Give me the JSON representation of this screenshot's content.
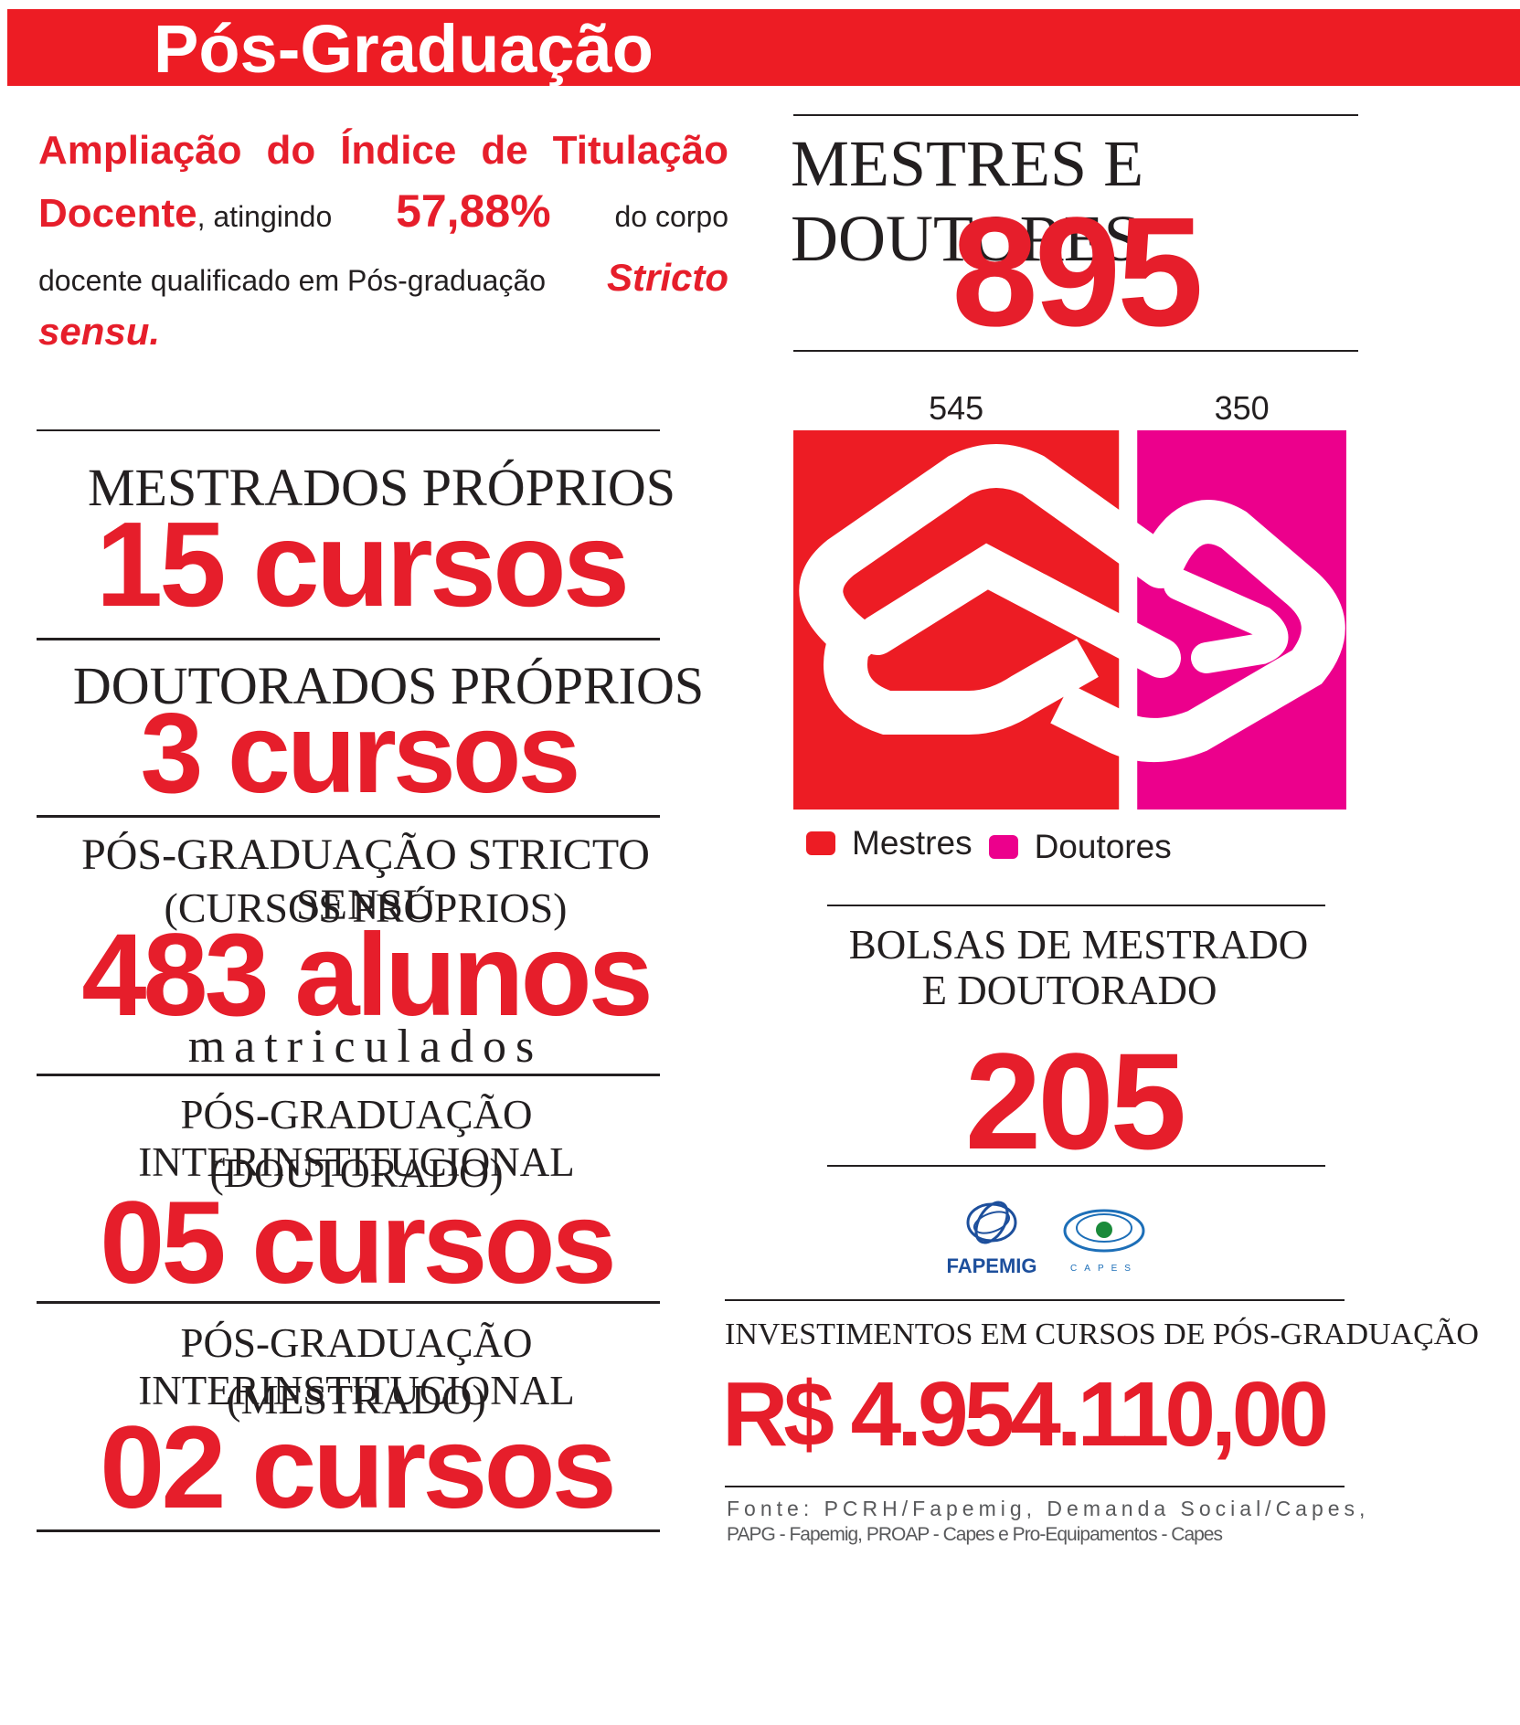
{
  "header": {
    "title": "Pós-Graduação",
    "band_color": "#ed1c24"
  },
  "intro": {
    "line1": "Ampliação do Índice de Titulação",
    "highlight_word": "Docente",
    "mid_text": ", atingindo",
    "percentage": "57,88%",
    "after_pct": "do corpo",
    "line3": "docente qualificado em Pós-graduação",
    "stricto": "Stricto",
    "sensu": "sensu."
  },
  "stats_left": [
    {
      "heading": "MESTRADOS PRÓPRIOS",
      "value": "15 cursos"
    },
    {
      "heading": "DOUTORADOS PRÓPRIOS",
      "value": "3 cursos"
    },
    {
      "heading": "PÓS-GRADUAÇÃO STRICTO SENSU",
      "heading2": "(CURSOS PRÓPRIOS)",
      "value": "483 alunos",
      "sub": "matriculados"
    },
    {
      "heading": "PÓS-GRADUAÇÃO INTERINSTITUCIONAL",
      "heading2": "(DOUTORADO)",
      "value": "05 cursos"
    },
    {
      "heading": "PÓS-GRADUAÇÃO INTERINSTITUCIONAL",
      "heading2": "(MESTRADO)",
      "value": "02 cursos"
    }
  ],
  "masters_doctors": {
    "heading": "MESTRES E DOUTORES",
    "total": "895"
  },
  "chart_data": {
    "type": "bar",
    "categories": [
      "Mestres",
      "Doutores"
    ],
    "values": [
      545,
      350
    ],
    "value_labels": [
      "545",
      "350"
    ],
    "colors": [
      "#ed1c24",
      "#ec008c"
    ],
    "legend": [
      "Mestres",
      "Doutores"
    ],
    "legend_position": "bottom"
  },
  "scholarships": {
    "heading1": "BOLSAS DE MESTRADO",
    "heading2": "E DOUTORADO",
    "value": "205"
  },
  "logos": {
    "fapemig": "FAPEMIG",
    "capes": "CAPES"
  },
  "investment": {
    "heading": "INVESTIMENTOS EM CURSOS DE PÓS-GRADUAÇÃO",
    "value": "R$ 4.954.110,00"
  },
  "source": {
    "line1": "Fonte: PCRH/Fapemig, Demanda Social/Capes,",
    "line2": "PAPG - Fapemig, PROAP - Capes e Pro-Equipamentos - Capes"
  }
}
